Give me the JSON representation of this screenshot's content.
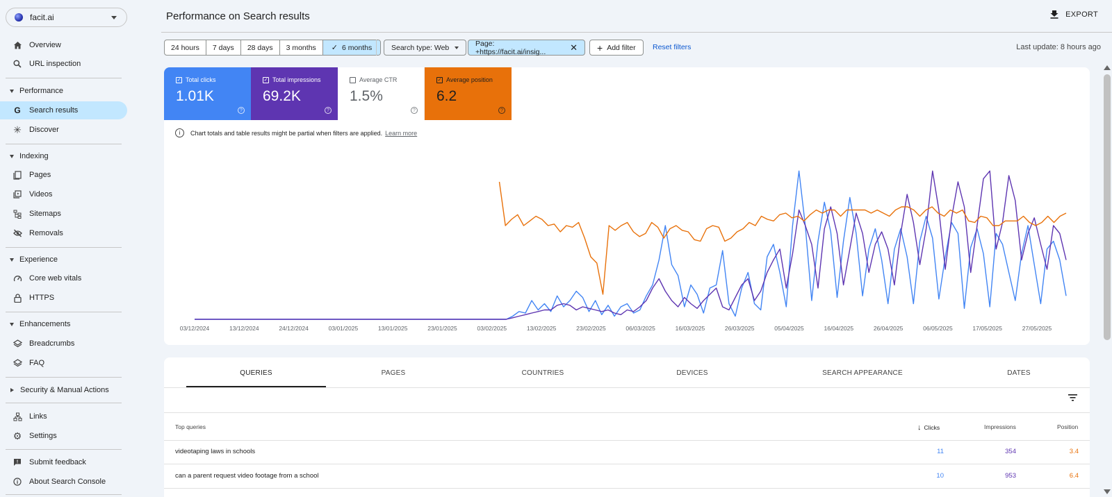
{
  "property": {
    "name": "facit.ai"
  },
  "sidebar": {
    "top_items": [
      {
        "label": "Overview",
        "icon": "home-icon"
      },
      {
        "label": "URL inspection",
        "icon": "search-icon"
      }
    ],
    "sections": {
      "performance": "Performance",
      "indexing": "Indexing",
      "experience": "Experience",
      "enhancements": "Enhancements",
      "security": "Security & Manual Actions"
    },
    "performance_items": [
      {
        "label": "Search results",
        "icon": "google-g-icon"
      },
      {
        "label": "Discover",
        "icon": "asterisk-icon"
      }
    ],
    "indexing_items": [
      {
        "label": "Pages",
        "icon": "pages-icon"
      },
      {
        "label": "Videos",
        "icon": "video-icon"
      },
      {
        "label": "Sitemaps",
        "icon": "sitemap-icon"
      },
      {
        "label": "Removals",
        "icon": "eye-off-icon"
      }
    ],
    "experience_items": [
      {
        "label": "Core web vitals",
        "icon": "gauge-icon"
      },
      {
        "label": "HTTPS",
        "icon": "lock-icon"
      }
    ],
    "enhancements_items": [
      {
        "label": "Breadcrumbs",
        "icon": "layers-icon"
      },
      {
        "label": "FAQ",
        "icon": "layers-icon"
      }
    ],
    "bottom_items": [
      {
        "label": "Links",
        "icon": "links-icon"
      },
      {
        "label": "Settings",
        "icon": "gear-icon"
      },
      {
        "label": "Submit feedback",
        "icon": "feedback-icon"
      },
      {
        "label": "About Search Console",
        "icon": "info-icon"
      }
    ]
  },
  "header": {
    "title": "Performance on Search results",
    "export_label": "EXPORT"
  },
  "filters": {
    "ranges": [
      "24 hours",
      "7 days",
      "28 days",
      "3 months",
      "6 months"
    ],
    "active_range": "6 months",
    "search_type": "Search type: Web",
    "page_filter": "Page: +https://facit.ai/insig...",
    "add_filter": "Add filter",
    "reset": "Reset filters",
    "last_update": "Last update: 8 hours ago"
  },
  "metrics": [
    {
      "label": "Total clicks",
      "value": "1.01K",
      "checked": true,
      "color": "#4285f4"
    },
    {
      "label": "Total impressions",
      "value": "69.2K",
      "checked": true,
      "color": "#5e35b1"
    },
    {
      "label": "Average CTR",
      "value": "1.5%",
      "checked": false,
      "color": "#ffffff"
    },
    {
      "label": "Average position",
      "value": "6.2",
      "checked": true,
      "color": "#e8710a"
    }
  ],
  "note": {
    "text": "Chart totals and table results might be partial when filters are applied.",
    "link": "Learn more"
  },
  "chart_data": {
    "type": "line",
    "x_ticks": [
      "03/12/2024",
      "13/12/2024",
      "24/12/2024",
      "03/01/2025",
      "13/01/2025",
      "23/01/2025",
      "03/02/2025",
      "13/02/2025",
      "23/02/2025",
      "06/03/2025",
      "16/03/2025",
      "26/03/2025",
      "05/04/2025",
      "16/04/2025",
      "26/04/2025",
      "06/05/2025",
      "17/05/2025",
      "27/05/2025"
    ],
    "y_axis_visible": false,
    "series": [
      {
        "name": "Total clicks",
        "color": "#4285f4",
        "values": [
          0,
          0,
          0,
          0,
          0,
          0,
          0,
          0,
          0,
          0,
          0,
          0,
          0,
          0,
          0,
          0,
          0,
          0,
          0,
          0,
          0,
          0,
          0,
          0,
          0,
          0,
          0,
          0,
          0,
          0,
          0,
          0,
          0,
          0,
          0,
          0,
          0,
          0,
          0,
          0,
          0,
          0,
          0,
          0,
          0,
          0,
          0,
          0,
          0,
          0,
          0.02,
          0.05,
          0.04,
          0.12,
          0.06,
          0.1,
          0.05,
          0.15,
          0.08,
          0.12,
          0.18,
          0.14,
          0.05,
          0.12,
          0.03,
          0.09,
          0.02,
          0.08,
          0.1,
          0.04,
          0.06,
          0.15,
          0.22,
          0.38,
          0.6,
          0.35,
          0.28,
          0.08,
          0.22,
          0.16,
          0.04,
          0.2,
          0.22,
          0.44,
          0.1,
          0.02,
          0.2,
          0.3,
          0.1,
          0.06,
          0.4,
          0.48,
          0.3,
          0.08,
          0.6,
          0.95,
          0.6,
          0.12,
          0.5,
          0.75,
          0.56,
          0.14,
          0.5,
          0.78,
          0.55,
          0.15,
          0.45,
          0.58,
          0.38,
          0.1,
          0.45,
          0.58,
          0.4,
          0.1,
          0.5,
          0.66,
          0.52,
          0.13,
          0.4,
          0.62,
          0.55,
          0.07,
          0.46,
          0.58,
          0.42,
          0.08,
          0.55,
          0.48,
          0.3,
          0.12,
          0.42,
          0.6,
          0.35,
          0.1,
          0.45,
          0.5,
          0.38,
          0.15
        ]
      },
      {
        "name": "Total impressions",
        "color": "#5e35b1",
        "values": [
          0,
          0,
          0,
          0,
          0,
          0,
          0,
          0,
          0,
          0,
          0,
          0,
          0,
          0,
          0,
          0,
          0,
          0,
          0,
          0,
          0,
          0,
          0,
          0,
          0,
          0,
          0,
          0,
          0,
          0,
          0,
          0,
          0,
          0,
          0,
          0,
          0,
          0,
          0,
          0,
          0,
          0,
          0,
          0,
          0,
          0,
          0,
          0,
          0,
          0,
          0.01,
          0.02,
          0.03,
          0.04,
          0.05,
          0.06,
          0.06,
          0.09,
          0.1,
          0.09,
          0.06,
          0.08,
          0.07,
          0.06,
          0.05,
          0.06,
          0.04,
          0.03,
          0.06,
          0.05,
          0.08,
          0.12,
          0.2,
          0.26,
          0.18,
          0.12,
          0.08,
          0.14,
          0.1,
          0.07,
          0.12,
          0.16,
          0.2,
          0.08,
          0.06,
          0.14,
          0.22,
          0.26,
          0.12,
          0.18,
          0.3,
          0.38,
          0.45,
          0.2,
          0.42,
          0.7,
          0.6,
          0.48,
          0.2,
          0.58,
          0.72,
          0.55,
          0.22,
          0.45,
          0.68,
          0.55,
          0.3,
          0.48,
          0.56,
          0.45,
          0.22,
          0.55,
          0.8,
          0.62,
          0.35,
          0.58,
          0.95,
          0.7,
          0.32,
          0.65,
          0.88,
          0.72,
          0.3,
          0.6,
          0.9,
          0.95,
          0.45,
          0.62,
          0.92,
          0.76,
          0.38,
          0.55,
          0.65,
          0.48,
          0.32,
          0.6,
          0.55,
          0.38
        ]
      },
      {
        "name": "Average position",
        "color": "#e8710a",
        "values": [
          null,
          null,
          null,
          null,
          null,
          null,
          null,
          null,
          null,
          null,
          null,
          null,
          null,
          null,
          null,
          null,
          null,
          null,
          null,
          null,
          null,
          null,
          null,
          null,
          null,
          null,
          null,
          null,
          null,
          null,
          null,
          null,
          null,
          null,
          null,
          null,
          null,
          null,
          null,
          null,
          null,
          null,
          null,
          null,
          null,
          null,
          null,
          null,
          null,
          null,
          0.88,
          0.6,
          0.64,
          0.67,
          0.6,
          0.63,
          0.66,
          0.64,
          0.6,
          0.61,
          0.56,
          0.6,
          0.59,
          0.62,
          0.52,
          0.4,
          0.36,
          0.16,
          0.6,
          0.57,
          0.6,
          0.62,
          0.56,
          0.53,
          0.55,
          0.62,
          0.59,
          0.52,
          0.58,
          0.6,
          0.57,
          0.56,
          0.51,
          0.5,
          0.58,
          0.6,
          0.59,
          0.5,
          0.52,
          0.56,
          0.58,
          0.62,
          0.6,
          0.66,
          0.64,
          0.63,
          0.67,
          0.68,
          0.65,
          0.66,
          0.63,
          0.67,
          0.7,
          0.68,
          0.7,
          0.7,
          0.66,
          0.7,
          0.7,
          0.7,
          0.7,
          0.68,
          0.7,
          0.68,
          0.66,
          0.7,
          0.72,
          0.72,
          0.7,
          0.66,
          0.7,
          0.72,
          0.68,
          0.66,
          0.7,
          0.68,
          0.7,
          0.63,
          0.62,
          0.66,
          0.65,
          0.6,
          0.6,
          0.63,
          0.63,
          0.63,
          0.66,
          0.62,
          0.6,
          0.62,
          0.66,
          0.62,
          0.66,
          0.68
        ]
      }
    ]
  },
  "table": {
    "tabs": [
      "QUERIES",
      "PAGES",
      "COUNTRIES",
      "DEVICES",
      "SEARCH APPEARANCE",
      "DATES"
    ],
    "active_tab": "QUERIES",
    "headers": {
      "query": "Top queries",
      "clicks": "Clicks",
      "impressions": "Impressions",
      "position": "Position"
    },
    "rows": [
      {
        "query": "videotaping laws in schools",
        "clicks": "11",
        "impressions": "354",
        "position": "3.4"
      },
      {
        "query": "can a parent request video footage from a school",
        "clicks": "10",
        "impressions": "953",
        "position": "6.4"
      }
    ]
  }
}
